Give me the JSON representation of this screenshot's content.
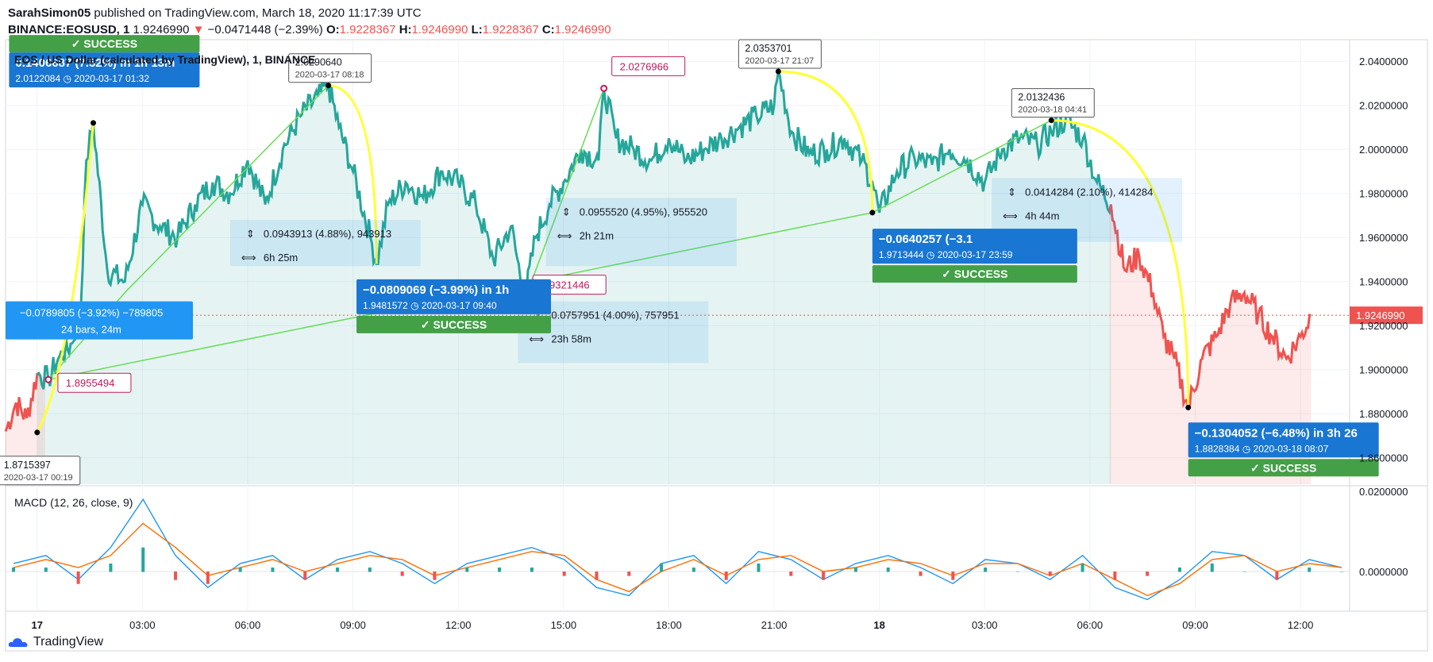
{
  "header": {
    "publisher": "SarahSimon05",
    "published_text": "published on TradingView.com, March 18, 2020 11:17:39 UTC",
    "symbol": "BINANCE:EOSUSD, 1",
    "last": "1.9246990",
    "arrow": "▼",
    "change": "−0.0471448 (−2.39%)",
    "o_label": "O:",
    "o_value": "1.9228367",
    "h_label": "H:",
    "h_value": "1.9246990",
    "l_label": "L:",
    "l_value": "1.9228367",
    "c_label": "C:",
    "c_value": "1.9246990"
  },
  "footer": {
    "brand": "TradingView"
  },
  "colors": {
    "up": "#26a69a",
    "down": "#ef5350",
    "yellow": "#ffff33",
    "green_line": "#66dd55",
    "blue": "#1976d2",
    "success": "#43a047",
    "pink": "#c2185b"
  },
  "chart_data": [
    {
      "type": "line",
      "title": "EOS / US Dollar (calculated by TradingView), 1, BINANCE",
      "ylim": [
        1.848,
        2.048
      ],
      "yticks": [
        "2.0400000",
        "2.0200000",
        "2.0000000",
        "1.9800000",
        "1.9600000",
        "1.9400000",
        "1.9200000",
        "1.9000000",
        "1.8800000",
        "1.8600000"
      ],
      "ytick_values": [
        2.04,
        2.02,
        2.0,
        1.98,
        1.96,
        1.94,
        1.92,
        1.9,
        1.88,
        1.86
      ],
      "xticks": [
        "17",
        "03:00",
        "06:00",
        "09:00",
        "12:00",
        "15:00",
        "18:00",
        "21:00",
        "18",
        "03:00",
        "06:00",
        "09:00",
        "12:00"
      ],
      "xtick_hours": [
        0,
        3,
        6,
        9,
        12,
        15,
        18,
        21,
        24,
        27,
        30,
        33,
        36
      ],
      "xlim_hours": [
        -0.9,
        37.4
      ],
      "last_price_label": "1.9246990",
      "series": [
        {
          "x_hours": [
            -0.9,
            -0.6,
            -0.3,
            0.0,
            0.32,
            0.6,
            1.0,
            1.25,
            1.4,
            1.6,
            2.0,
            2.5,
            3.0,
            3.5,
            4.0,
            4.5,
            5.0,
            5.5,
            6.0,
            6.5,
            7.0,
            7.5,
            8.0,
            8.3,
            8.6,
            9.0,
            9.5,
            9.67,
            10.0,
            10.5,
            11.0,
            11.5,
            12.0,
            12.5,
            13.0,
            13.5,
            13.9,
            14.2,
            14.6,
            15.0,
            15.5,
            16.0,
            16.15,
            16.5,
            17.0,
            17.5,
            18.0,
            18.5,
            19.0,
            19.5,
            20.0,
            20.5,
            21.0,
            21.12,
            21.5,
            22.0,
            22.5,
            23.0,
            23.5,
            23.8,
            24.0,
            24.5,
            25.0,
            25.5,
            26.0,
            26.5,
            27.0,
            27.5,
            28.0,
            28.5,
            28.9,
            29.3,
            29.8,
            30.2,
            30.6,
            31.0,
            31.4,
            31.8,
            32.1,
            32.4,
            32.8,
            33.2,
            33.6,
            34.0,
            34.4,
            34.8,
            35.2,
            35.6,
            36.0,
            36.3
          ],
          "y": [
            1.872,
            1.885,
            1.878,
            1.898,
            1.8955,
            1.905,
            1.912,
            1.93,
            1.995,
            2.012,
            1.945,
            1.94,
            1.975,
            1.965,
            1.96,
            1.975,
            1.985,
            1.98,
            1.995,
            1.975,
            2.0,
            2.015,
            2.024,
            2.029,
            2.01,
            1.99,
            1.96,
            1.948,
            1.975,
            1.985,
            1.978,
            1.99,
            1.985,
            1.975,
            1.95,
            1.965,
            1.9321,
            1.96,
            1.975,
            1.985,
            2.0,
            1.995,
            2.0277,
            2.005,
            2.0,
            1.995,
            2.005,
            1.995,
            2.0,
            2.005,
            2.01,
            2.015,
            2.02,
            2.0354,
            2.008,
            1.998,
            2.0,
            2.005,
            1.995,
            1.985,
            1.9713,
            1.99,
            1.996,
            1.993,
            2.0,
            1.995,
            1.985,
            2.0,
            2.005,
            2.002,
            2.008,
            2.0132,
            2.005,
            1.985,
            1.975,
            1.945,
            1.952,
            1.935,
            1.915,
            1.905,
            1.8828,
            1.905,
            1.915,
            1.93,
            1.935,
            1.925,
            1.915,
            1.905,
            1.915,
            1.9247
          ]
        }
      ],
      "annotations": {
        "price_labels": [
          {
            "id": "p1",
            "text": "1.8715397",
            "sub": "2020-03-17 00:19"
          },
          {
            "id": "p2",
            "text": "2.0290640",
            "sub": "2020-03-17 08:18"
          },
          {
            "id": "p3",
            "text": "2.0353701",
            "sub": "2020-03-17 21:07"
          },
          {
            "id": "p4",
            "text": "2.0132436",
            "sub": "2020-03-18 04:41"
          }
        ],
        "pink_labels": [
          {
            "id": "k1",
            "text": "1.8955494"
          },
          {
            "id": "k2",
            "text": "2.0276966"
          },
          {
            "id": "k3",
            "text": "1.9321446"
          }
        ],
        "ranges": [
          {
            "id": "r1",
            "text": "0.0943913 (4.88%), 943913",
            "time": "6h 25m"
          },
          {
            "id": "r2",
            "text": "0.0955520 (4.95%), 955520",
            "time": "2h 21m"
          },
          {
            "id": "r3",
            "text": "0.0757951 (4.00%), 757951",
            "time": "23h 58m"
          },
          {
            "id": "r4",
            "text": "0.0414284 (2.10%), 414284",
            "time": "4h 44m"
          }
        ],
        "trade_boxes": [
          {
            "id": "t1",
            "main": "0.1406687 (7.52%) in 1h 13m",
            "sub": "2.0122084",
            "date": "2020-03-17  01:32",
            "success": "✓ SUCCESS"
          },
          {
            "id": "t2",
            "main": "−0.0809069 (−3.99%) in 1h",
            "sub": "1.9481572",
            "date": "2020-03-17  09:40",
            "success": "✓ SUCCESS"
          },
          {
            "id": "t3",
            "main": "−0.0640257 (−3.1",
            "sub": "1.9713444",
            "date": "2020-03-17  23:59",
            "success": "✓ SUCCESS"
          },
          {
            "id": "t4",
            "main": "−0.1304052 (−6.48%) in 3h 26",
            "sub": "1.8828384",
            "date": "2020-03-18  08:07",
            "success": "✓ SUCCESS"
          }
        ],
        "blue_info": {
          "main": "−0.0789805 (−3.92%) −789805",
          "sub": "24 bars, 24m"
        }
      }
    },
    {
      "type": "line",
      "title": "MACD (12, 26, close, 9)",
      "ylim": [
        -0.0095,
        0.021
      ],
      "yticks": [
        "0.0200000",
        "0.0000000"
      ],
      "ytick_values": [
        0.02,
        0.0
      ],
      "series": [
        {
          "name": "MACD",
          "values": [
            0.002,
            0.004,
            -0.002,
            0.006,
            0.018,
            0.004,
            -0.004,
            0.002,
            0.004,
            -0.002,
            0.003,
            0.005,
            0.002,
            -0.003,
            0.002,
            0.004,
            0.006,
            0.003,
            -0.004,
            -0.006,
            0.002,
            0.004,
            -0.003,
            0.005,
            0.003,
            -0.002,
            0.002,
            0.004,
            0.001,
            -0.003,
            0.003,
            0.002,
            -0.002,
            0.004,
            -0.004,
            -0.007,
            -0.002,
            0.005,
            0.004,
            -0.002,
            0.003,
            0.001
          ]
        },
        {
          "name": "Signal",
          "values": [
            0.001,
            0.003,
            0.001,
            0.004,
            0.012,
            0.006,
            -0.001,
            0.001,
            0.003,
            0.0,
            0.002,
            0.004,
            0.003,
            -0.001,
            0.001,
            0.003,
            0.005,
            0.004,
            -0.002,
            -0.005,
            0.0,
            0.003,
            -0.001,
            0.003,
            0.004,
            0.0,
            0.001,
            0.003,
            0.002,
            -0.001,
            0.002,
            0.002,
            -0.001,
            0.002,
            -0.002,
            -0.006,
            -0.003,
            0.003,
            0.004,
            0.0,
            0.002,
            0.001
          ]
        }
      ]
    }
  ]
}
